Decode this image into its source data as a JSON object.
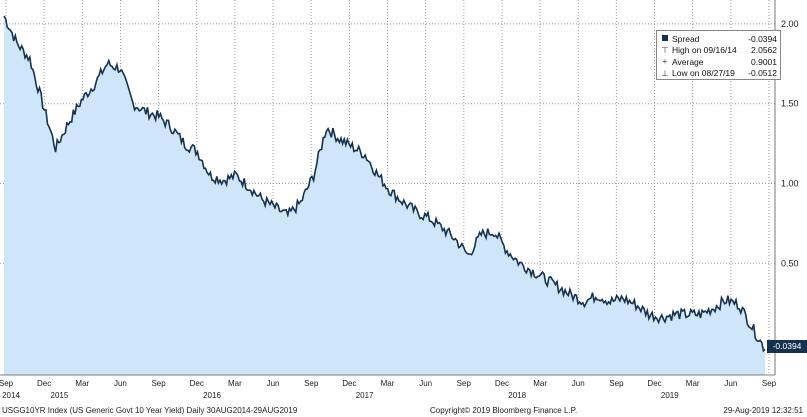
{
  "chart_data": {
    "type": "area",
    "ylim": [
      -0.2,
      2.15
    ],
    "y_ticks": [
      "2.00",
      "1.50",
      "1.00",
      "0.50"
    ],
    "x_ticks": [
      "Sep",
      "Dec",
      "Mar",
      "Jun",
      "Sep",
      "Dec",
      "Mar",
      "Jun",
      "Sep",
      "Dec",
      "Mar",
      "Jun",
      "Sep",
      "Dec",
      "Mar",
      "Jun",
      "Sep",
      "Dec",
      "Mar",
      "Jun",
      "Sep"
    ],
    "year_labels": [
      "2014",
      "2015",
      "2016",
      "2017",
      "2018",
      "2019"
    ],
    "grid": true,
    "legend_position": "top-right",
    "last_value_label": "-0.0394",
    "series": [
      {
        "name": "Spread",
        "x": [
          "2014-09",
          "2014-10",
          "2014-11",
          "2014-12",
          "2015-01",
          "2015-02",
          "2015-03",
          "2015-04",
          "2015-05",
          "2015-06",
          "2015-07",
          "2015-08",
          "2015-09",
          "2015-10",
          "2015-11",
          "2015-12",
          "2016-01",
          "2016-02",
          "2016-03",
          "2016-04",
          "2016-05",
          "2016-06",
          "2016-07",
          "2016-08",
          "2016-09",
          "2016-10",
          "2016-11",
          "2016-12",
          "2017-01",
          "2017-02",
          "2017-03",
          "2017-04",
          "2017-05",
          "2017-06",
          "2017-07",
          "2017-08",
          "2017-09",
          "2017-10",
          "2017-11",
          "2017-12",
          "2018-01",
          "2018-02",
          "2018-03",
          "2018-04",
          "2018-05",
          "2018-06",
          "2018-07",
          "2018-08",
          "2018-09",
          "2018-10",
          "2018-11",
          "2018-12",
          "2019-01",
          "2019-02",
          "2019-03",
          "2019-04",
          "2019-05",
          "2019-06",
          "2019-07",
          "2019-08"
        ],
        "values": [
          2.05,
          1.88,
          1.78,
          1.5,
          1.22,
          1.38,
          1.52,
          1.62,
          1.75,
          1.72,
          1.5,
          1.45,
          1.42,
          1.35,
          1.25,
          1.2,
          1.05,
          1.02,
          1.05,
          0.98,
          0.9,
          0.85,
          0.8,
          0.88,
          1.05,
          1.35,
          1.28,
          1.23,
          1.18,
          1.05,
          0.95,
          0.88,
          0.82,
          0.78,
          0.72,
          0.65,
          0.55,
          0.68,
          0.7,
          0.58,
          0.5,
          0.45,
          0.4,
          0.35,
          0.3,
          0.26,
          0.3,
          0.26,
          0.28,
          0.24,
          0.18,
          0.16,
          0.18,
          0.18,
          0.18,
          0.22,
          0.27,
          0.24,
          0.1,
          -0.0394
        ],
        "color": "#17324f",
        "fill": "#cfe5f8"
      }
    ]
  },
  "legend": {
    "rows": [
      {
        "icon": "square",
        "label": "Spread",
        "value": "-0.0394"
      },
      {
        "icon": "high",
        "label": "High on 09/16/14",
        "value": "2.0562"
      },
      {
        "icon": "average",
        "label": "Average",
        "value": "0.9001"
      },
      {
        "icon": "low",
        "label": "Low on 08/27/19",
        "value": "-0.0512"
      }
    ]
  },
  "footer": {
    "left": "USGG10YR Index (US Generic Govt 10 Year Yield)  Daily 30AUG2014-29AUG2019",
    "center": "Copyright© 2019 Bloomberg Finance L.P.",
    "right": "29-Aug-2019 12:32:51"
  }
}
